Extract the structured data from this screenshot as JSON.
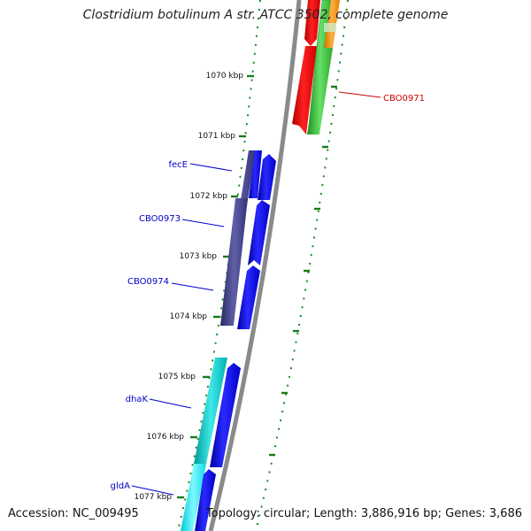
{
  "title": "Clostridium botulinum A str. ATCC 3502, complete genome",
  "accession": "Accession: NC_009495",
  "summary": "Topology: circular; Length: 3,886,916 bp; Genes: 3,686",
  "ticks": [
    "1070 kbp",
    "1071 kbp",
    "1072 kbp",
    "1073 kbp",
    "1074 kbp",
    "1075 kbp",
    "1076 kbp",
    "1077 kbp"
  ],
  "gene_labels": [
    {
      "text": "CBO0971",
      "color": "#cc0000"
    },
    {
      "text": "fecE",
      "color": "#0000cc"
    },
    {
      "text": "CBO0973",
      "color": "#0000cc"
    },
    {
      "text": "CBO0974",
      "color": "#0000cc"
    },
    {
      "text": "dhaK",
      "color": "#0000cc"
    },
    {
      "text": "gldA",
      "color": "#0000cc"
    }
  ],
  "colors": {
    "backbone": "#8a8a8a",
    "ruler_dots": "#1a8a1a",
    "red_gene": "#ff0000",
    "green_gene": "#33cc33",
    "orange_gene": "#ff9900",
    "blue_gene": "#0000ff",
    "navy_gene": "#3a3a8c",
    "cyan_gene": "#00cccc"
  }
}
